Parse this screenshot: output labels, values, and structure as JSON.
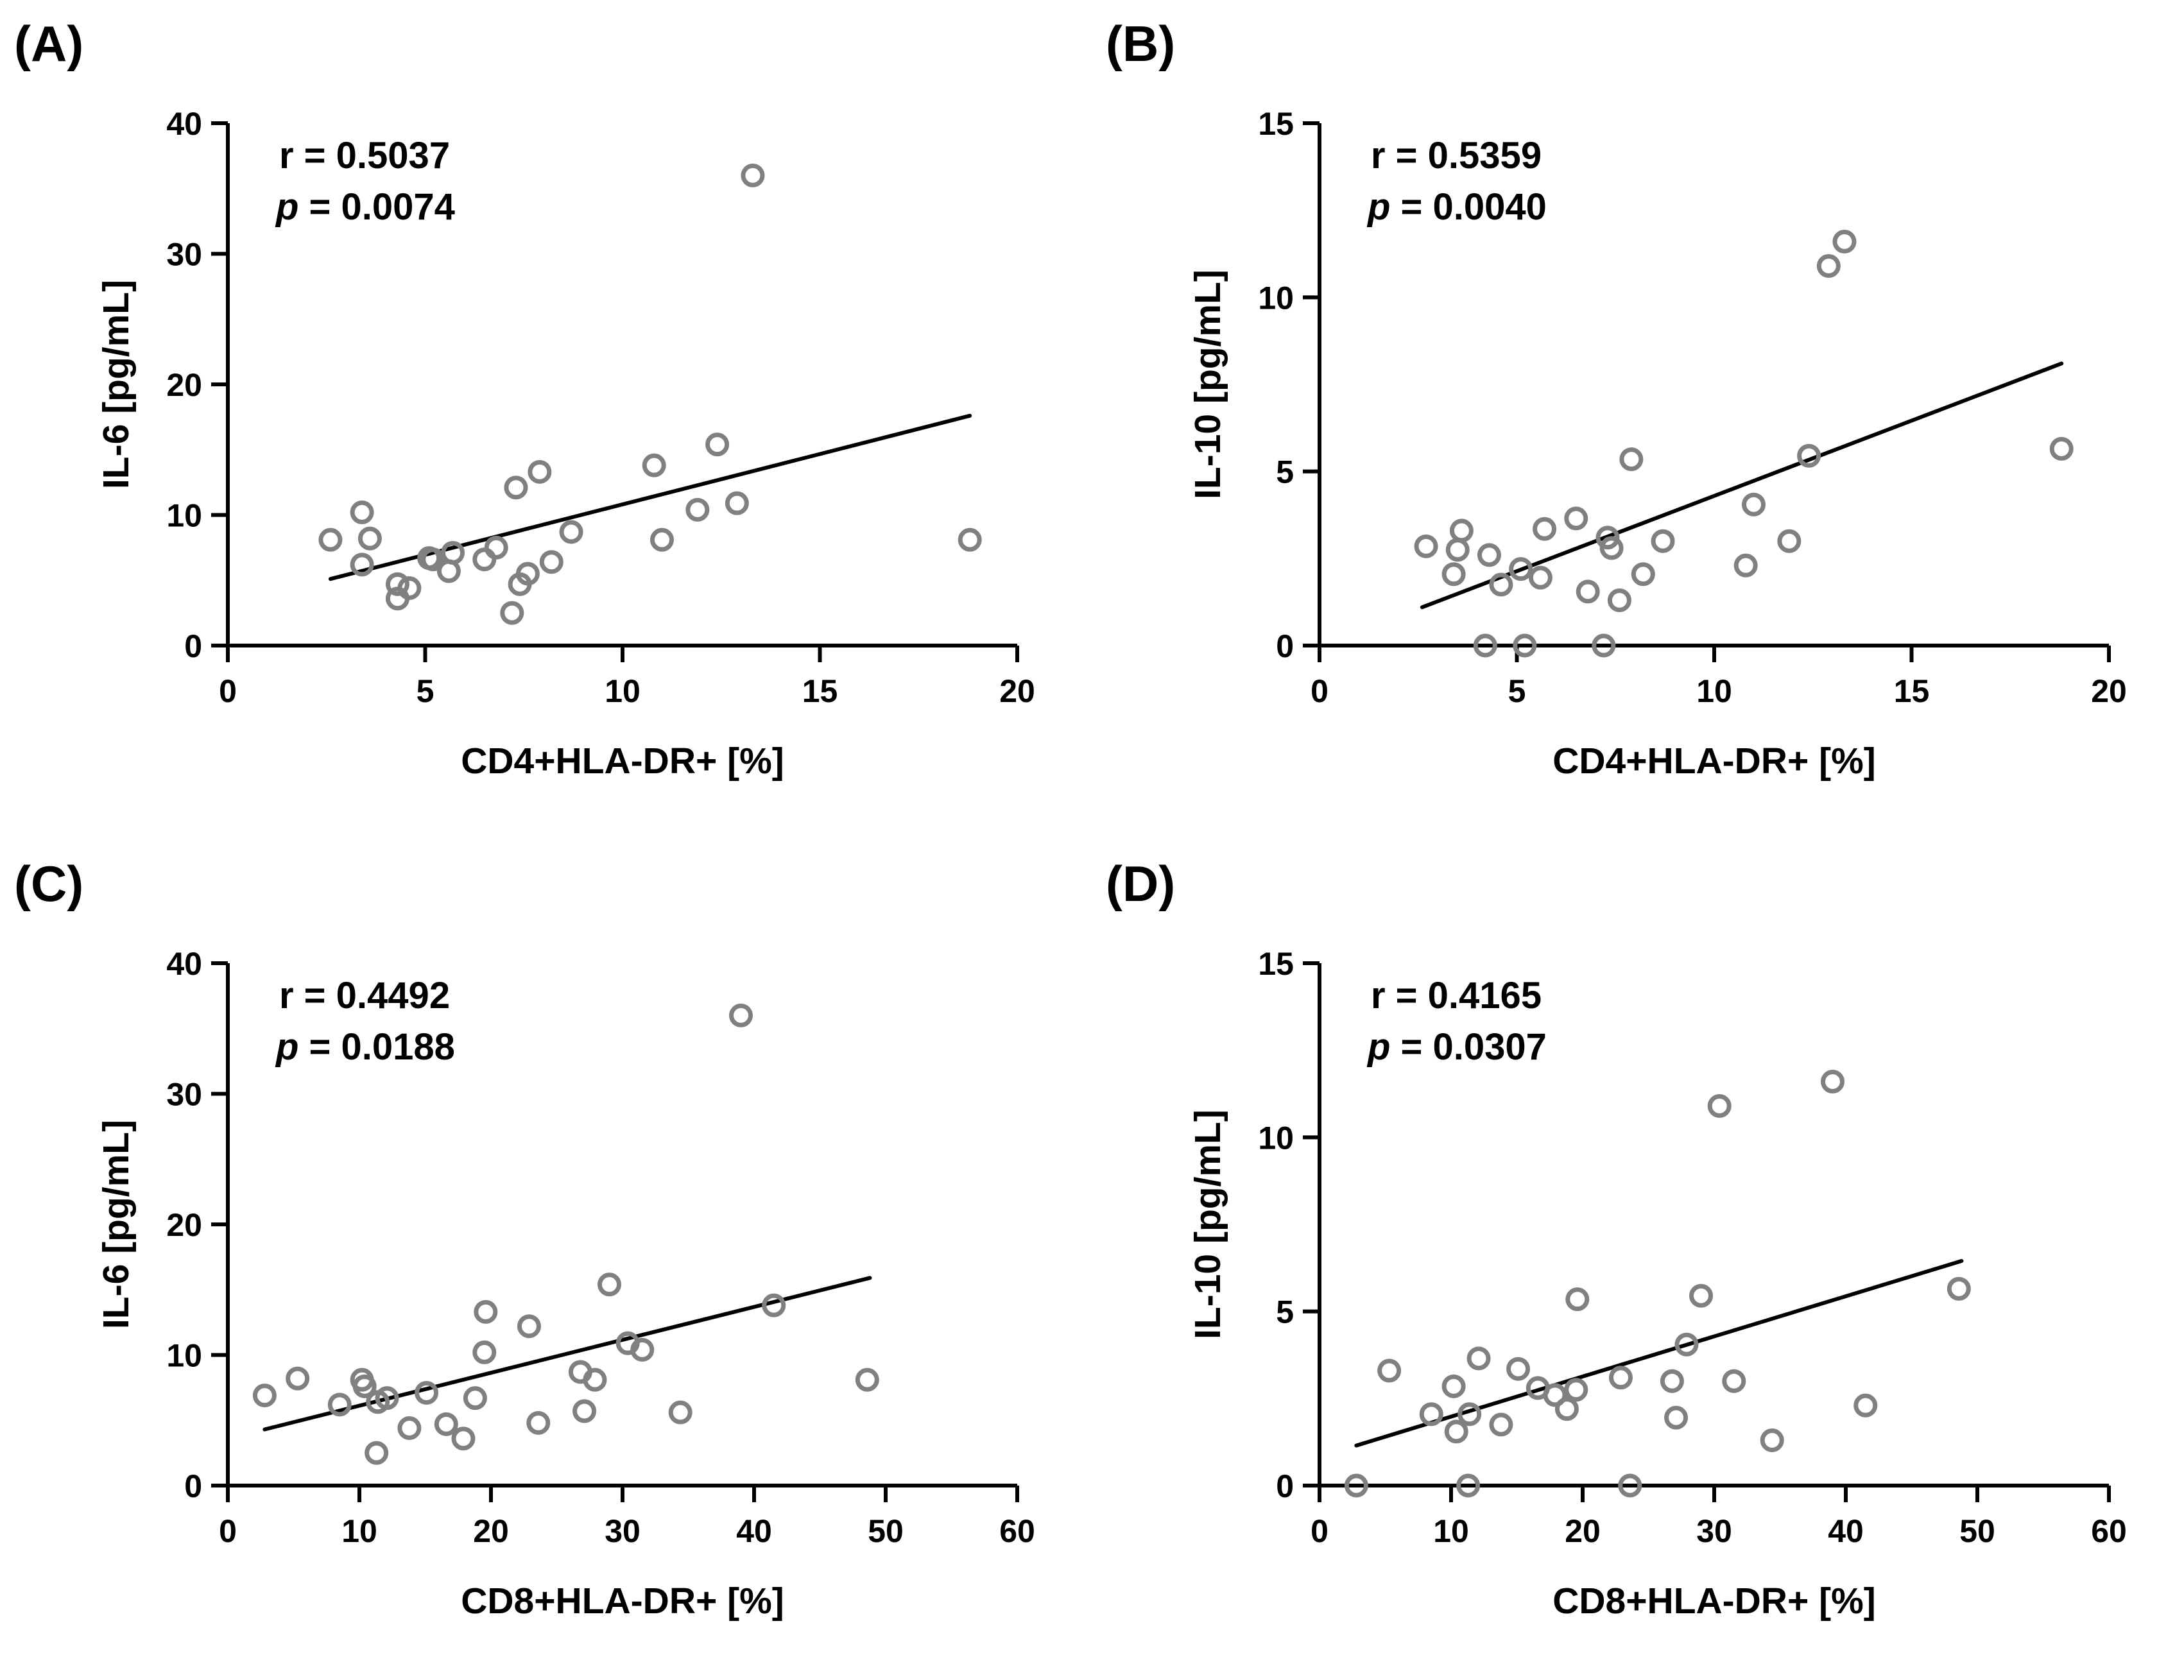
{
  "colors": {
    "axis": "#000000",
    "marker": "#808080",
    "fit": "#000000",
    "background": "#ffffff"
  },
  "chart_data": [
    {
      "type": "scatter",
      "panel_label": "(A)",
      "xlabel": "CD4+HLA-DR+ [%]",
      "ylabel": "IL-6 [pg/mL]",
      "xlim": [
        0,
        20
      ],
      "ylim": [
        0,
        40
      ],
      "xticks": [
        0,
        5,
        10,
        15,
        20
      ],
      "yticks": [
        0,
        10,
        20,
        30,
        40
      ],
      "xtick_labels": [
        "0",
        "5",
        "10",
        "15",
        "20"
      ],
      "ytick_labels": [
        "0",
        "10",
        "20",
        "30",
        "40"
      ],
      "r_text": "r = 0.5037",
      "p_label": "p",
      "p_value_text": " = 0.0074",
      "grid": false,
      "fit_line": {
        "x": [
          2.6,
          18.8
        ],
        "y": [
          5.1,
          17.6
        ]
      },
      "points": [
        [
          2.6,
          8.1
        ],
        [
          3.4,
          10.2
        ],
        [
          3.4,
          6.2
        ],
        [
          3.6,
          8.2
        ],
        [
          4.3,
          4.7
        ],
        [
          4.3,
          3.6
        ],
        [
          4.6,
          4.4
        ],
        [
          5.1,
          6.7
        ],
        [
          5.2,
          6.6
        ],
        [
          5.6,
          5.7
        ],
        [
          5.7,
          7.1
        ],
        [
          6.5,
          6.6
        ],
        [
          6.8,
          7.5
        ],
        [
          7.2,
          2.5
        ],
        [
          7.3,
          12.1
        ],
        [
          7.4,
          4.7
        ],
        [
          7.6,
          5.5
        ],
        [
          7.9,
          13.3
        ],
        [
          8.2,
          6.4
        ],
        [
          8.7,
          8.7
        ],
        [
          10.8,
          13.8
        ],
        [
          11.0,
          8.1
        ],
        [
          11.9,
          10.4
        ],
        [
          12.4,
          15.4
        ],
        [
          12.9,
          10.9
        ],
        [
          13.3,
          36.0
        ],
        [
          18.8,
          8.1
        ]
      ]
    },
    {
      "type": "scatter",
      "panel_label": "(B)",
      "xlabel": "CD4+HLA-DR+ [%]",
      "ylabel": "IL-10 [pg/mL]",
      "xlim": [
        0,
        20
      ],
      "ylim": [
        0,
        15
      ],
      "xticks": [
        0,
        5,
        10,
        15,
        20
      ],
      "yticks": [
        0,
        5,
        10,
        15
      ],
      "xtick_labels": [
        "0",
        "5",
        "10",
        "15",
        "20"
      ],
      "ytick_labels": [
        "0",
        "5",
        "10",
        "15"
      ],
      "r_text": "r = 0.5359",
      "p_label": "p",
      "p_value_text": " = 0.0040",
      "grid": false,
      "fit_line": {
        "x": [
          2.6,
          18.8
        ],
        "y": [
          1.1,
          8.1
        ]
      },
      "points": [
        [
          2.7,
          2.85
        ],
        [
          3.4,
          2.05
        ],
        [
          3.5,
          2.75
        ],
        [
          3.6,
          3.3
        ],
        [
          4.2,
          0.0
        ],
        [
          4.3,
          2.6
        ],
        [
          4.6,
          1.75
        ],
        [
          5.1,
          2.2
        ],
        [
          5.2,
          0.0
        ],
        [
          5.6,
          1.95
        ],
        [
          5.7,
          3.35
        ],
        [
          6.5,
          3.65
        ],
        [
          6.8,
          1.55
        ],
        [
          7.2,
          0.0
        ],
        [
          7.3,
          3.1
        ],
        [
          7.4,
          2.8
        ],
        [
          7.6,
          1.3
        ],
        [
          7.9,
          5.35
        ],
        [
          8.2,
          2.05
        ],
        [
          8.7,
          3.0
        ],
        [
          10.8,
          2.3
        ],
        [
          11.0,
          4.05
        ],
        [
          11.9,
          3.0
        ],
        [
          12.4,
          5.45
        ],
        [
          12.9,
          10.9
        ],
        [
          13.3,
          11.6
        ],
        [
          18.8,
          5.65
        ]
      ]
    },
    {
      "type": "scatter",
      "panel_label": "(C)",
      "xlabel": "CD8+HLA-DR+ [%]",
      "ylabel": "IL-6 [pg/mL]",
      "xlim": [
        0,
        60
      ],
      "ylim": [
        0,
        40
      ],
      "xticks": [
        0,
        10,
        20,
        30,
        40,
        50,
        60
      ],
      "yticks": [
        0,
        10,
        20,
        30,
        40
      ],
      "xtick_labels": [
        "0",
        "10",
        "20",
        "30",
        "40",
        "50",
        "60"
      ],
      "ytick_labels": [
        "0",
        "10",
        "20",
        "30",
        "40"
      ],
      "r_text": "r = 0.4492",
      "p_label": "p",
      "p_value_text": " = 0.0188",
      "grid": false,
      "fit_line": {
        "x": [
          2.8,
          48.8
        ],
        "y": [
          4.3,
          15.9
        ]
      },
      "points": [
        [
          2.8,
          6.9
        ],
        [
          5.3,
          8.2
        ],
        [
          8.5,
          6.2
        ],
        [
          10.2,
          8.1
        ],
        [
          10.4,
          7.6
        ],
        [
          11.3,
          2.5
        ],
        [
          11.4,
          6.4
        ],
        [
          12.1,
          6.7
        ],
        [
          13.8,
          4.4
        ],
        [
          15.1,
          7.1
        ],
        [
          16.6,
          4.7
        ],
        [
          17.9,
          3.6
        ],
        [
          18.8,
          6.7
        ],
        [
          19.5,
          10.2
        ],
        [
          19.6,
          13.3
        ],
        [
          22.9,
          12.2
        ],
        [
          23.6,
          4.8
        ],
        [
          26.8,
          8.7
        ],
        [
          27.1,
          5.7
        ],
        [
          27.9,
          8.1
        ],
        [
          29.0,
          15.4
        ],
        [
          30.4,
          10.9
        ],
        [
          31.5,
          10.4
        ],
        [
          34.4,
          5.6
        ],
        [
          39.0,
          36.0
        ],
        [
          41.5,
          13.8
        ],
        [
          48.6,
          8.1
        ]
      ]
    },
    {
      "type": "scatter",
      "panel_label": "(D)",
      "xlabel": "CD8+HLA-DR+ [%]",
      "ylabel": "IL-10 [pg/mL]",
      "xlim": [
        0,
        60
      ],
      "ylim": [
        0,
        15
      ],
      "xticks": [
        0,
        10,
        20,
        30,
        40,
        50,
        60
      ],
      "yticks": [
        0,
        5,
        10,
        15
      ],
      "xtick_labels": [
        "0",
        "10",
        "20",
        "30",
        "40",
        "50",
        "60"
      ],
      "ytick_labels": [
        "0",
        "5",
        "10",
        "15"
      ],
      "r_text": "r = 0.4165",
      "p_label": "p",
      "p_value_text": " = 0.0307",
      "grid": false,
      "fit_line": {
        "x": [
          2.8,
          48.8
        ],
        "y": [
          1.15,
          6.45
        ]
      },
      "points": [
        [
          2.8,
          0.0
        ],
        [
          5.3,
          3.3
        ],
        [
          8.5,
          2.05
        ],
        [
          10.2,
          2.85
        ],
        [
          10.4,
          1.55
        ],
        [
          11.3,
          0.0
        ],
        [
          11.4,
          2.05
        ],
        [
          12.1,
          3.65
        ],
        [
          13.8,
          1.75
        ],
        [
          15.1,
          3.35
        ],
        [
          16.6,
          2.8
        ],
        [
          17.9,
          2.6
        ],
        [
          18.8,
          2.2
        ],
        [
          19.5,
          2.75
        ],
        [
          19.6,
          5.35
        ],
        [
          22.9,
          3.1
        ],
        [
          23.6,
          0.0
        ],
        [
          26.8,
          3.0
        ],
        [
          27.1,
          1.95
        ],
        [
          27.9,
          4.05
        ],
        [
          29.0,
          5.45
        ],
        [
          30.4,
          10.9
        ],
        [
          31.5,
          3.0
        ],
        [
          34.4,
          1.3
        ],
        [
          39.0,
          11.6
        ],
        [
          41.5,
          2.3
        ],
        [
          48.6,
          5.65
        ]
      ]
    }
  ]
}
